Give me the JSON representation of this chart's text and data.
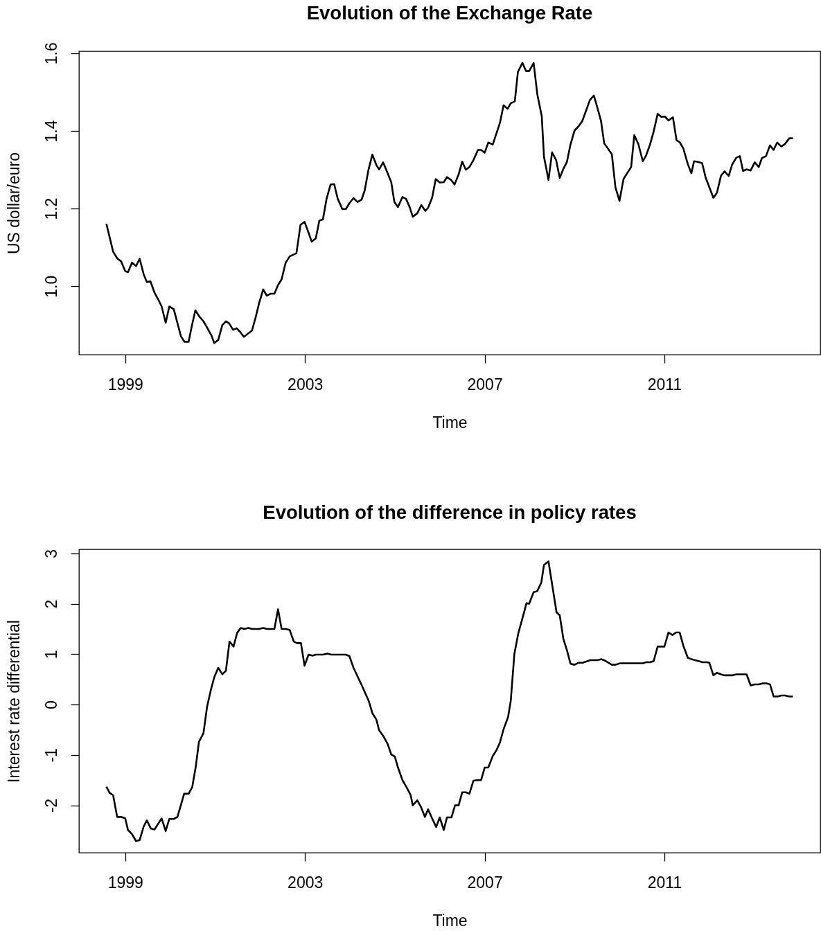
{
  "chart_data": [
    {
      "type": "line",
      "title": "Evolution of the Exchange Rate",
      "xlabel": "Time",
      "ylabel": "US dollar/euro",
      "xlim": [
        1997.97,
        2014.47
      ],
      "ylim": [
        0.824,
        1.605
      ],
      "xticks": [
        1999,
        2003,
        2007,
        2011
      ],
      "yticks": [
        {
          "value": 1.0,
          "label": "1.0"
        },
        1.2,
        1.4,
        1.6
      ],
      "x": [
        1998.58,
        1998.73,
        1998.82,
        1998.91,
        1999.0,
        1999.06,
        1999.15,
        1999.24,
        1999.32,
        1999.41,
        1999.48,
        1999.56,
        1999.65,
        1999.73,
        1999.81,
        1999.9,
        1999.98,
        2000.08,
        2000.16,
        2000.24,
        2000.32,
        2000.41,
        2000.48,
        2000.56,
        2000.65,
        2000.74,
        2000.83,
        2000.92,
        2000.98,
        2001.07,
        2001.16,
        2001.24,
        2001.31,
        2001.4,
        2001.48,
        2001.56,
        2001.64,
        2001.73,
        2001.82,
        2001.9,
        2001.98,
        2002.07,
        2002.15,
        2002.24,
        2002.32,
        2002.4,
        2002.48,
        2002.57,
        2002.66,
        2002.81,
        2002.9,
        2002.99,
        2003.07,
        2003.15,
        2003.24,
        2003.32,
        2003.4,
        2003.48,
        2003.57,
        2003.65,
        2003.73,
        2003.83,
        2003.91,
        2003.99,
        2004.08,
        2004.17,
        2004.26,
        2004.33,
        2004.41,
        2004.5,
        2004.59,
        2004.65,
        2004.74,
        2004.84,
        2004.92,
        2004.99,
        2005.07,
        2005.17,
        2005.25,
        2005.33,
        2005.4,
        2005.5,
        2005.59,
        2005.68,
        2005.74,
        2005.83,
        2005.91,
        2006.0,
        2006.09,
        2006.16,
        2006.25,
        2006.33,
        2006.42,
        2006.5,
        2006.58,
        2006.66,
        2006.75,
        2006.85,
        2006.92,
        2007.0,
        2007.08,
        2007.18,
        2007.26,
        2007.34,
        2007.42,
        2007.51,
        2007.58,
        2007.67,
        2007.74,
        2007.84,
        2007.92,
        2007.99,
        2008.09,
        2008.17,
        2008.27,
        2008.32,
        2008.42,
        2008.5,
        2008.59,
        2008.67,
        2008.75,
        2008.83,
        2008.91,
        2009.0,
        2009.09,
        2009.17,
        2009.25,
        2009.34,
        2009.43,
        2009.51,
        2009.59,
        2009.66,
        2009.74,
        2009.83,
        2009.91,
        2010.0,
        2010.09,
        2010.17,
        2010.26,
        2010.33,
        2010.42,
        2010.52,
        2010.59,
        2010.68,
        2010.76,
        2010.85,
        2010.93,
        2011.01,
        2011.09,
        2011.19,
        2011.27,
        2011.34,
        2011.42,
        2011.52,
        2011.6,
        2011.66,
        2011.75,
        2011.84,
        2011.92,
        2012.0,
        2012.09,
        2012.17,
        2012.26,
        2012.34,
        2012.43,
        2012.51,
        2012.6,
        2012.68,
        2012.75,
        2012.83,
        2012.92,
        2013.01,
        2013.1,
        2013.17,
        2013.26,
        2013.35,
        2013.43,
        2013.51,
        2013.6,
        2013.68,
        2013.78,
        2013.86
      ],
      "series": [
        {
          "color": "#000000",
          "values": [
            1.161,
            1.089,
            1.072,
            1.064,
            1.039,
            1.036,
            1.061,
            1.052,
            1.071,
            1.031,
            1.011,
            1.013,
            0.984,
            0.967,
            0.948,
            0.906,
            0.948,
            0.941,
            0.906,
            0.871,
            0.857,
            0.857,
            0.897,
            0.938,
            0.922,
            0.91,
            0.892,
            0.873,
            0.854,
            0.862,
            0.9,
            0.91,
            0.905,
            0.888,
            0.892,
            0.882,
            0.87,
            0.878,
            0.886,
            0.919,
            0.957,
            0.992,
            0.976,
            0.981,
            0.981,
            1.003,
            1.018,
            1.061,
            1.077,
            1.085,
            1.158,
            1.166,
            1.141,
            1.115,
            1.123,
            1.169,
            1.172,
            1.225,
            1.262,
            1.263,
            1.225,
            1.199,
            1.199,
            1.214,
            1.227,
            1.217,
            1.223,
            1.247,
            1.298,
            1.339,
            1.312,
            1.301,
            1.319,
            1.291,
            1.268,
            1.217,
            1.204,
            1.23,
            1.225,
            1.204,
            1.179,
            1.188,
            1.209,
            1.194,
            1.202,
            1.228,
            1.276,
            1.267,
            1.268,
            1.281,
            1.274,
            1.262,
            1.288,
            1.321,
            1.3,
            1.307,
            1.325,
            1.351,
            1.351,
            1.344,
            1.37,
            1.365,
            1.393,
            1.421,
            1.466,
            1.457,
            1.471,
            1.476,
            1.552,
            1.575,
            1.554,
            1.554,
            1.575,
            1.495,
            1.438,
            1.333,
            1.274,
            1.345,
            1.325,
            1.279,
            1.302,
            1.32,
            1.365,
            1.401,
            1.412,
            1.425,
            1.45,
            1.479,
            1.491,
            1.459,
            1.425,
            1.368,
            1.355,
            1.34,
            1.255,
            1.22,
            1.276,
            1.291,
            1.307,
            1.389,
            1.366,
            1.322,
            1.336,
            1.365,
            1.398,
            1.444,
            1.436,
            1.437,
            1.427,
            1.435,
            1.376,
            1.371,
            1.355,
            1.315,
            1.291,
            1.322,
            1.32,
            1.317,
            1.279,
            1.255,
            1.228,
            1.241,
            1.285,
            1.296,
            1.284,
            1.314,
            1.331,
            1.335,
            1.297,
            1.301,
            1.298,
            1.319,
            1.307,
            1.33,
            1.335,
            1.363,
            1.351,
            1.37,
            1.36,
            1.366,
            1.381,
            1.381
          ]
        }
      ]
    },
    {
      "type": "line",
      "title": "Evolution of the difference in policy rates",
      "xlabel": "Time",
      "ylabel": "Interest rate differential",
      "xlim": [
        1997.97,
        2014.47
      ],
      "ylim": [
        -2.94,
        3.08
      ],
      "xticks": [
        1999,
        2003,
        2007,
        2011
      ],
      "yticks": [
        -2,
        -1,
        0,
        1,
        2,
        3
      ],
      "x": [
        1998.58,
        1998.65,
        1998.73,
        1998.82,
        1998.91,
        1999.0,
        1999.06,
        1999.15,
        1999.24,
        1999.32,
        1999.41,
        1999.48,
        1999.57,
        1999.65,
        1999.73,
        1999.81,
        1999.9,
        1999.98,
        2000.08,
        2000.16,
        2000.24,
        2000.31,
        2000.41,
        2000.49,
        2000.57,
        2000.64,
        2000.74,
        2000.82,
        2000.9,
        2000.98,
        2001.07,
        2001.16,
        2001.24,
        2001.32,
        2001.41,
        2001.49,
        2001.57,
        2001.65,
        2001.74,
        2001.82,
        2001.98,
        2002.07,
        2002.15,
        2002.32,
        2002.4,
        2002.48,
        2002.58,
        2002.66,
        2002.75,
        2002.82,
        2002.91,
        2002.99,
        2003.08,
        2003.17,
        2003.24,
        2003.4,
        2003.5,
        2003.58,
        2003.91,
        2003.99,
        2004.08,
        2004.17,
        2004.26,
        2004.34,
        2004.42,
        2004.5,
        2004.59,
        2004.65,
        2004.74,
        2004.84,
        2004.92,
        2005.0,
        2005.07,
        2005.17,
        2005.26,
        2005.35,
        2005.4,
        2005.5,
        2005.58,
        2005.67,
        2005.74,
        2005.83,
        2005.92,
        2006.0,
        2006.09,
        2006.16,
        2006.26,
        2006.34,
        2006.42,
        2006.5,
        2006.58,
        2006.66,
        2006.75,
        2006.84,
        2006.92,
        2007.0,
        2007.08,
        2007.18,
        2007.26,
        2007.34,
        2007.42,
        2007.52,
        2007.58,
        2007.66,
        2007.75,
        2007.84,
        2007.93,
        2007.99,
        2008.09,
        2008.17,
        2008.26,
        2008.32,
        2008.42,
        2008.51,
        2008.6,
        2008.67,
        2008.75,
        2008.83,
        2008.91,
        2009.0,
        2009.09,
        2009.18,
        2009.35,
        2009.51,
        2009.6,
        2009.68,
        2009.83,
        2009.91,
        2010.01,
        2010.52,
        2010.59,
        2010.68,
        2010.76,
        2010.85,
        2010.93,
        2011.0,
        2011.09,
        2011.18,
        2011.26,
        2011.34,
        2011.42,
        2011.52,
        2011.6,
        2011.68,
        2011.77,
        2011.85,
        2011.94,
        2012.0,
        2012.09,
        2012.17,
        2012.26,
        2012.34,
        2012.51,
        2012.6,
        2012.83,
        2012.92,
        2013.01,
        2013.1,
        2013.19,
        2013.27,
        2013.35,
        2013.43,
        2013.52,
        2013.6,
        2013.68,
        2013.78,
        2013.86
      ],
      "series": [
        {
          "color": "#000000",
          "values": [
            -1.63,
            -1.75,
            -1.8,
            -2.23,
            -2.23,
            -2.26,
            -2.49,
            -2.57,
            -2.71,
            -2.69,
            -2.42,
            -2.3,
            -2.46,
            -2.48,
            -2.37,
            -2.26,
            -2.51,
            -2.27,
            -2.27,
            -2.23,
            -1.99,
            -1.77,
            -1.77,
            -1.64,
            -1.23,
            -0.74,
            -0.57,
            -0.05,
            0.27,
            0.54,
            0.73,
            0.6,
            0.67,
            1.25,
            1.15,
            1.42,
            1.52,
            1.5,
            1.52,
            1.5,
            1.5,
            1.52,
            1.5,
            1.5,
            1.89,
            1.5,
            1.5,
            1.48,
            1.25,
            1.22,
            1.22,
            0.77,
            0.99,
            0.97,
            0.99,
            0.99,
            1.01,
            0.99,
            0.99,
            0.96,
            0.73,
            0.56,
            0.39,
            0.23,
            0.07,
            -0.17,
            -0.3,
            -0.51,
            -0.62,
            -0.78,
            -0.99,
            -1.03,
            -1.25,
            -1.5,
            -1.64,
            -1.79,
            -2.0,
            -1.9,
            -2.03,
            -2.23,
            -2.08,
            -2.26,
            -2.43,
            -2.24,
            -2.49,
            -2.24,
            -2.24,
            -2.0,
            -2.0,
            -1.74,
            -1.74,
            -1.77,
            -1.51,
            -1.5,
            -1.5,
            -1.25,
            -1.25,
            -1.02,
            -0.91,
            -0.75,
            -0.49,
            -0.25,
            0.07,
            1.0,
            1.42,
            1.71,
            2.01,
            2.0,
            2.23,
            2.25,
            2.42,
            2.77,
            2.84,
            2.33,
            1.83,
            1.77,
            1.31,
            1.08,
            0.81,
            0.79,
            0.83,
            0.83,
            0.88,
            0.88,
            0.9,
            0.87,
            0.79,
            0.79,
            0.82,
            0.82,
            0.84,
            0.84,
            0.86,
            1.15,
            1.15,
            1.15,
            1.43,
            1.38,
            1.43,
            1.43,
            1.17,
            0.93,
            0.9,
            0.88,
            0.86,
            0.84,
            0.84,
            0.83,
            0.58,
            0.63,
            0.6,
            0.58,
            0.58,
            0.6,
            0.6,
            0.38,
            0.4,
            0.4,
            0.42,
            0.42,
            0.4,
            0.16,
            0.16,
            0.18,
            0.18,
            0.16,
            0.16
          ]
        }
      ]
    }
  ]
}
